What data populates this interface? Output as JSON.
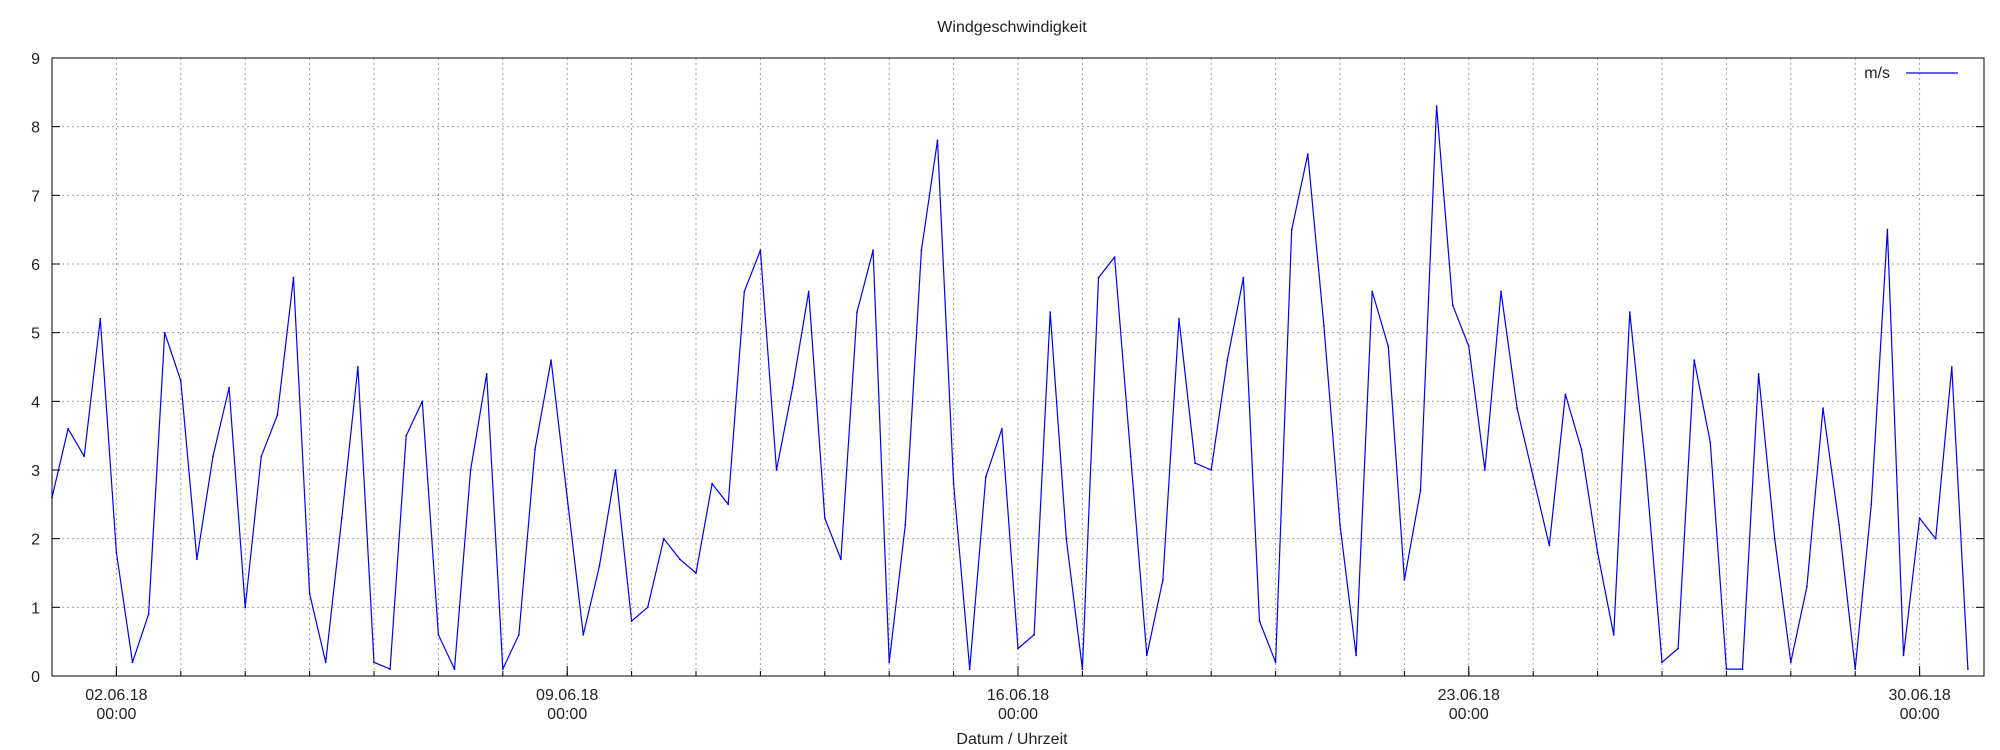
{
  "chart_data": {
    "type": "line",
    "title": "Windgeschwindigkeit",
    "xlabel": "Datum / Uhrzeit",
    "ylabel": "",
    "xlim": [
      "01.06.18 00:00",
      "01.07.18 00:00"
    ],
    "ylim": [
      0,
      9
    ],
    "yticks": [
      "0",
      "1",
      "2",
      "3",
      "4",
      "5",
      "6",
      "7",
      "8",
      "9"
    ],
    "xticks": [
      {
        "date": "02.06.18",
        "time": "00:00"
      },
      {
        "date": "09.06.18",
        "time": "00:00"
      },
      {
        "date": "16.06.18",
        "time": "00:00"
      },
      {
        "date": "23.06.18",
        "time": "00:00"
      },
      {
        "date": "30.06.18",
        "time": "00:00"
      }
    ],
    "grid": true,
    "legend_position": "top-right",
    "series": [
      {
        "name": "m/s",
        "color": "#0000ff",
        "points": [
          [
            "01.06.18 00:00",
            2.6
          ],
          [
            "01.06.18 06:00",
            3.6
          ],
          [
            "01.06.18 12:00",
            3.2
          ],
          [
            "01.06.18 18:00",
            5.2
          ],
          [
            "02.06.18 00:00",
            1.8
          ],
          [
            "02.06.18 06:00",
            0.2
          ],
          [
            "02.06.18 12:00",
            0.9
          ],
          [
            "02.06.18 18:00",
            5.0
          ],
          [
            "03.06.18 00:00",
            4.3
          ],
          [
            "03.06.18 06:00",
            1.7
          ],
          [
            "03.06.18 12:00",
            3.2
          ],
          [
            "03.06.18 18:00",
            4.2
          ],
          [
            "04.06.18 00:00",
            1.0
          ],
          [
            "04.06.18 06:00",
            3.2
          ],
          [
            "04.06.18 12:00",
            3.8
          ],
          [
            "04.06.18 18:00",
            5.8
          ],
          [
            "05.06.18 00:00",
            1.2
          ],
          [
            "05.06.18 06:00",
            0.2
          ],
          [
            "05.06.18 12:00",
            2.3
          ],
          [
            "05.06.18 18:00",
            4.5
          ],
          [
            "06.06.18 00:00",
            0.2
          ],
          [
            "06.06.18 06:00",
            0.1
          ],
          [
            "06.06.18 12:00",
            3.5
          ],
          [
            "06.06.18 18:00",
            4.0
          ],
          [
            "07.06.18 00:00",
            0.6
          ],
          [
            "07.06.18 06:00",
            0.1
          ],
          [
            "07.06.18 12:00",
            3.0
          ],
          [
            "07.06.18 18:00",
            4.4
          ],
          [
            "08.06.18 00:00",
            0.1
          ],
          [
            "08.06.18 06:00",
            0.6
          ],
          [
            "08.06.18 12:00",
            3.3
          ],
          [
            "08.06.18 18:00",
            4.6
          ],
          [
            "09.06.18 00:00",
            2.6
          ],
          [
            "09.06.18 06:00",
            0.6
          ],
          [
            "09.06.18 12:00",
            1.6
          ],
          [
            "09.06.18 18:00",
            3.0
          ],
          [
            "10.06.18 00:00",
            0.8
          ],
          [
            "10.06.18 06:00",
            1.0
          ],
          [
            "10.06.18 12:00",
            2.0
          ],
          [
            "10.06.18 18:00",
            1.7
          ],
          [
            "11.06.18 00:00",
            1.5
          ],
          [
            "11.06.18 06:00",
            2.8
          ],
          [
            "11.06.18 12:00",
            2.5
          ],
          [
            "11.06.18 18:00",
            5.6
          ],
          [
            "12.06.18 00:00",
            6.2
          ],
          [
            "12.06.18 06:00",
            3.0
          ],
          [
            "12.06.18 12:00",
            4.2
          ],
          [
            "12.06.18 18:00",
            5.6
          ],
          [
            "13.06.18 00:00",
            2.3
          ],
          [
            "13.06.18 06:00",
            1.7
          ],
          [
            "13.06.18 12:00",
            5.3
          ],
          [
            "13.06.18 18:00",
            6.2
          ],
          [
            "14.06.18 00:00",
            0.2
          ],
          [
            "14.06.18 06:00",
            2.2
          ],
          [
            "14.06.18 12:00",
            6.2
          ],
          [
            "14.06.18 18:00",
            7.8
          ],
          [
            "15.06.18 00:00",
            2.8
          ],
          [
            "15.06.18 06:00",
            0.1
          ],
          [
            "15.06.18 12:00",
            2.9
          ],
          [
            "15.06.18 18:00",
            3.6
          ],
          [
            "16.06.18 00:00",
            0.4
          ],
          [
            "16.06.18 06:00",
            0.6
          ],
          [
            "16.06.18 12:00",
            5.3
          ],
          [
            "16.06.18 18:00",
            2.0
          ],
          [
            "17.06.18 00:00",
            0.1
          ],
          [
            "17.06.18 06:00",
            5.8
          ],
          [
            "17.06.18 12:00",
            6.1
          ],
          [
            "17.06.18 18:00",
            3.2
          ],
          [
            "18.06.18 00:00",
            0.3
          ],
          [
            "18.06.18 06:00",
            1.4
          ],
          [
            "18.06.18 12:00",
            5.2
          ],
          [
            "18.06.18 18:00",
            3.1
          ],
          [
            "19.06.18 00:00",
            3.0
          ],
          [
            "19.06.18 06:00",
            4.6
          ],
          [
            "19.06.18 12:00",
            5.8
          ],
          [
            "19.06.18 18:00",
            0.8
          ],
          [
            "20.06.18 00:00",
            0.2
          ],
          [
            "20.06.18 06:00",
            6.5
          ],
          [
            "20.06.18 12:00",
            7.6
          ],
          [
            "20.06.18 18:00",
            5.1
          ],
          [
            "21.06.18 00:00",
            2.2
          ],
          [
            "21.06.18 06:00",
            0.3
          ],
          [
            "21.06.18 12:00",
            5.6
          ],
          [
            "21.06.18 18:00",
            4.8
          ],
          [
            "22.06.18 00:00",
            1.4
          ],
          [
            "22.06.18 06:00",
            2.7
          ],
          [
            "22.06.18 12:00",
            8.3
          ],
          [
            "22.06.18 18:00",
            5.4
          ],
          [
            "23.06.18 00:00",
            4.8
          ],
          [
            "23.06.18 06:00",
            3.0
          ],
          [
            "23.06.18 12:00",
            5.6
          ],
          [
            "23.06.18 18:00",
            3.9
          ],
          [
            "24.06.18 00:00",
            2.9
          ],
          [
            "24.06.18 06:00",
            1.9
          ],
          [
            "24.06.18 12:00",
            4.1
          ],
          [
            "24.06.18 18:00",
            3.3
          ],
          [
            "25.06.18 00:00",
            1.8
          ],
          [
            "25.06.18 06:00",
            0.6
          ],
          [
            "25.06.18 12:00",
            5.3
          ],
          [
            "25.06.18 18:00",
            3.0
          ],
          [
            "26.06.18 00:00",
            0.2
          ],
          [
            "26.06.18 06:00",
            0.4
          ],
          [
            "26.06.18 12:00",
            4.6
          ],
          [
            "26.06.18 18:00",
            3.4
          ],
          [
            "27.06.18 00:00",
            0.1
          ],
          [
            "27.06.18 06:00",
            0.1
          ],
          [
            "27.06.18 12:00",
            4.4
          ],
          [
            "27.06.18 18:00",
            2.0
          ],
          [
            "28.06.18 00:00",
            0.2
          ],
          [
            "28.06.18 06:00",
            1.3
          ],
          [
            "28.06.18 12:00",
            3.9
          ],
          [
            "28.06.18 18:00",
            2.2
          ],
          [
            "29.06.18 00:00",
            0.1
          ],
          [
            "29.06.18 06:00",
            2.5
          ],
          [
            "29.06.18 12:00",
            6.5
          ],
          [
            "29.06.18 18:00",
            0.3
          ],
          [
            "30.06.18 00:00",
            2.3
          ],
          [
            "30.06.18 06:00",
            2.0
          ],
          [
            "30.06.18 12:00",
            4.5
          ],
          [
            "30.06.18 18:00",
            0.1
          ]
        ]
      }
    ]
  }
}
